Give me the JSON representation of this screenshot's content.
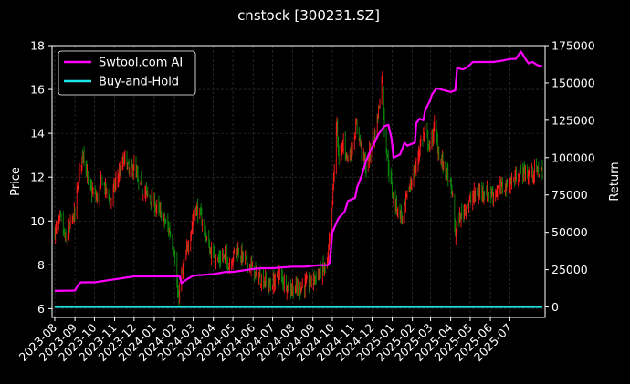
{
  "colors": {
    "background": "#000000",
    "up_candle": "#ff1a1a",
    "down_candle": "#0a8a0a",
    "grid": "#3a3a3a",
    "ai_strategy": "#ff00ff",
    "buy_and_hold": "#1ee6e6",
    "axis": "#ffffff"
  },
  "chart_data": {
    "type": "line",
    "title": "cnstock [300231.SZ]",
    "xlabel": "",
    "ylabel": "Price",
    "y2label": "Return",
    "ylim": [
      5.6,
      18.0
    ],
    "y2lim": [
      -7000,
      175000
    ],
    "yticks": [
      "6",
      "8",
      "10",
      "12",
      "14",
      "16",
      "18"
    ],
    "y2ticks": [
      "0",
      "25000",
      "50000",
      "75000",
      "100000",
      "125000",
      "150000",
      "175000"
    ],
    "xticks": [
      "2023-08",
      "2023-09",
      "2023-10",
      "2023-11",
      "2023-12",
      "2024-01",
      "2024-02",
      "2024-03",
      "2024-04",
      "2024-05",
      "2024-06",
      "2024-07",
      "2024-08",
      "2024-09",
      "2024-10",
      "2024-11",
      "2024-12",
      "2025-01",
      "2025-02",
      "2025-03",
      "2025-04",
      "2025-05",
      "2025-06",
      "2025-07"
    ],
    "x_start": "2023-08-01",
    "x_end": "2025-08-20",
    "grid": true,
    "legend_position": "top-left",
    "price_series_name": "",
    "price_path": [
      [
        "2023-08-01",
        9.5
      ],
      [
        "2023-08-10",
        10.1
      ],
      [
        "2023-08-18",
        9.0
      ],
      [
        "2023-08-25",
        9.8
      ],
      [
        "2023-09-01",
        10.4
      ],
      [
        "2023-09-08",
        12.3
      ],
      [
        "2023-09-14",
        13.2
      ],
      [
        "2023-09-22",
        11.6
      ],
      [
        "2023-10-05",
        11.0
      ],
      [
        "2023-10-12",
        11.9
      ],
      [
        "2023-10-20",
        11.3
      ],
      [
        "2023-10-27",
        11.0
      ],
      [
        "2023-11-03",
        11.8
      ],
      [
        "2023-11-10",
        12.3
      ],
      [
        "2023-11-17",
        12.9
      ],
      [
        "2023-11-24",
        12.2
      ],
      [
        "2023-12-01",
        12.5
      ],
      [
        "2023-12-08",
        11.7
      ],
      [
        "2023-12-15",
        11.4
      ],
      [
        "2023-12-25",
        11.1
      ],
      [
        "2024-01-05",
        10.6
      ],
      [
        "2024-01-15",
        10.1
      ],
      [
        "2024-01-25",
        9.5
      ],
      [
        "2024-02-01",
        8.6
      ],
      [
        "2024-02-05",
        7.0
      ],
      [
        "2024-02-07",
        6.3
      ],
      [
        "2024-02-09",
        7.0
      ],
      [
        "2024-02-20",
        8.6
      ],
      [
        "2024-02-26",
        9.5
      ],
      [
        "2024-03-04",
        10.6
      ],
      [
        "2024-03-11",
        10.3
      ],
      [
        "2024-03-18",
        9.6
      ],
      [
        "2024-03-27",
        8.6
      ],
      [
        "2024-04-08",
        8.2
      ],
      [
        "2024-04-16",
        8.4
      ],
      [
        "2024-04-25",
        8.0
      ],
      [
        "2024-05-06",
        8.7
      ],
      [
        "2024-05-15",
        8.4
      ],
      [
        "2024-05-27",
        8.0
      ],
      [
        "2024-06-06",
        7.5
      ],
      [
        "2024-06-17",
        7.3
      ],
      [
        "2024-06-28",
        7.0
      ],
      [
        "2024-07-10",
        7.6
      ],
      [
        "2024-07-22",
        7.1
      ],
      [
        "2024-08-02",
        6.9
      ],
      [
        "2024-08-15",
        7.0
      ],
      [
        "2024-08-27",
        7.2
      ],
      [
        "2024-09-06",
        7.5
      ],
      [
        "2024-09-18",
        7.8
      ],
      [
        "2024-09-24",
        8.2
      ],
      [
        "2024-09-30",
        10.4
      ],
      [
        "2024-10-08",
        14.5
      ],
      [
        "2024-10-11",
        12.6
      ],
      [
        "2024-10-18",
        13.6
      ],
      [
        "2024-10-25",
        12.8
      ],
      [
        "2024-11-01",
        13.5
      ],
      [
        "2024-11-08",
        14.4
      ],
      [
        "2024-11-15",
        13.2
      ],
      [
        "2024-11-22",
        12.4
      ],
      [
        "2024-11-29",
        13.3
      ],
      [
        "2024-12-06",
        14.0
      ],
      [
        "2024-12-12",
        15.3
      ],
      [
        "2024-12-17",
        16.8
      ],
      [
        "2024-12-20",
        14.2
      ],
      [
        "2024-12-26",
        12.5
      ],
      [
        "2025-01-03",
        11.0
      ],
      [
        "2025-01-10",
        10.5
      ],
      [
        "2025-01-17",
        10.1
      ],
      [
        "2025-01-24",
        11.2
      ],
      [
        "2025-02-07",
        12.5
      ],
      [
        "2025-02-14",
        13.6
      ],
      [
        "2025-02-21",
        14.1
      ],
      [
        "2025-02-28",
        13.3
      ],
      [
        "2025-03-07",
        14.3
      ],
      [
        "2025-03-14",
        13.0
      ],
      [
        "2025-03-21",
        12.5
      ],
      [
        "2025-03-28",
        12.0
      ],
      [
        "2025-04-03",
        11.3
      ],
      [
        "2025-04-08",
        9.4
      ],
      [
        "2025-04-11",
        9.9
      ],
      [
        "2025-04-18",
        10.3
      ],
      [
        "2025-04-25",
        10.7
      ],
      [
        "2025-05-09",
        11.2
      ],
      [
        "2025-05-20",
        11.4
      ],
      [
        "2025-06-05",
        11.2
      ],
      [
        "2025-06-16",
        11.5
      ],
      [
        "2025-06-27",
        11.6
      ],
      [
        "2025-07-08",
        11.9
      ],
      [
        "2025-07-18",
        12.3
      ],
      [
        "2025-07-30",
        12.1
      ],
      [
        "2025-08-12",
        12.3
      ],
      [
        "2025-08-20",
        12.2
      ]
    ],
    "series": [
      {
        "name": "Swtool.com AI",
        "x": [
          "2023-08-01",
          "2023-09-01",
          "2023-09-05",
          "2023-09-10",
          "2023-10-01",
          "2023-11-01",
          "2023-12-01",
          "2024-01-01",
          "2024-02-01",
          "2024-02-09",
          "2024-02-12",
          "2024-02-22",
          "2024-03-01",
          "2024-04-01",
          "2024-04-20",
          "2024-05-01",
          "2024-06-01",
          "2024-06-15",
          "2024-07-01",
          "2024-08-01",
          "2024-08-20",
          "2024-09-10",
          "2024-09-24",
          "2024-09-27",
          "2024-10-01",
          "2024-10-10",
          "2024-10-20",
          "2024-10-25",
          "2024-11-05",
          "2024-11-08",
          "2024-11-15",
          "2024-11-22",
          "2024-11-29",
          "2024-12-05",
          "2024-12-10",
          "2024-12-13",
          "2024-12-20",
          "2024-12-26",
          "2024-12-31",
          "2025-01-03",
          "2025-01-13",
          "2025-01-20",
          "2025-01-24",
          "2025-02-05",
          "2025-02-07",
          "2025-02-12",
          "2025-02-18",
          "2025-02-21",
          "2025-02-28",
          "2025-03-03",
          "2025-03-10",
          "2025-04-01",
          "2025-04-08",
          "2025-04-11",
          "2025-04-20",
          "2025-04-28",
          "2025-05-05",
          "2025-05-15",
          "2025-06-05",
          "2025-06-20",
          "2025-07-01",
          "2025-07-10",
          "2025-07-18",
          "2025-07-25",
          "2025-07-30",
          "2025-08-05",
          "2025-08-12",
          "2025-08-20"
        ],
        "values": [
          10800,
          11000,
          14000,
          16500,
          16500,
          18500,
          20500,
          20500,
          20500,
          20500,
          16000,
          19000,
          21000,
          22000,
          23500,
          23500,
          25500,
          26000,
          26000,
          27000,
          27000,
          28000,
          28000,
          30000,
          50000,
          59000,
          64000,
          71000,
          73000,
          80000,
          88000,
          98000,
          105000,
          110000,
          115000,
          117000,
          121000,
          122000,
          113000,
          100000,
          102000,
          110000,
          108000,
          110000,
          123000,
          126000,
          125000,
          132000,
          138000,
          142000,
          146500,
          144000,
          145000,
          160000,
          159000,
          161000,
          164000,
          164000,
          164000,
          165000,
          166000,
          166000,
          171000,
          166000,
          163000,
          164000,
          162000,
          161000
        ]
      },
      {
        "name": "Buy-and-Hold",
        "x": [
          "2023-08-01",
          "2025-08-20"
        ],
        "values": [
          0,
          0
        ]
      }
    ]
  }
}
